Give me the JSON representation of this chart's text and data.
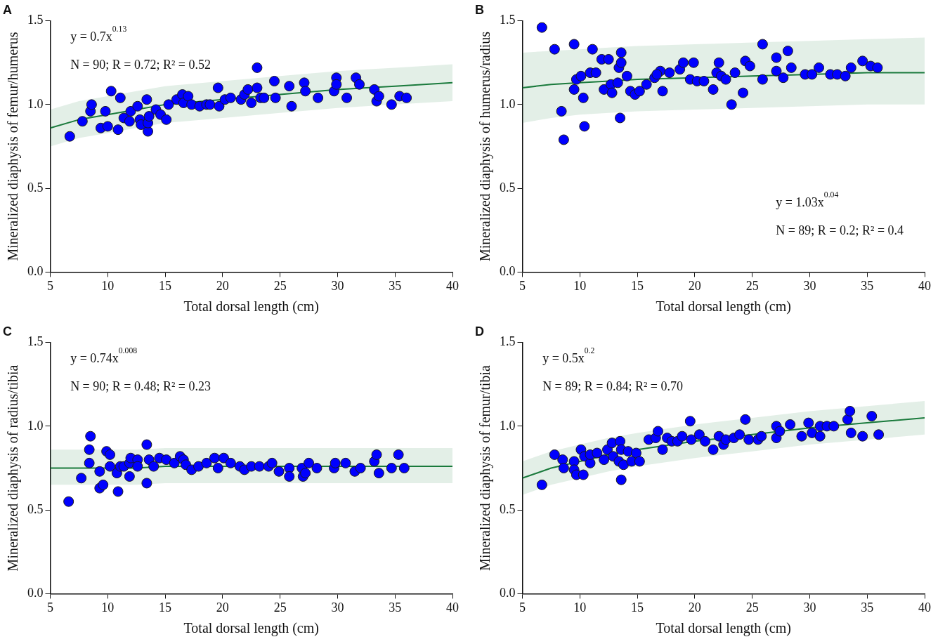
{
  "chart_data": [
    {
      "type": "scatter",
      "title": "A",
      "xlabel": "Total dorsal length (cm)",
      "ylabel": "Mineralized diaphysis of femur/humerus",
      "annotations": [
        "y = 0.7x$^{0.13}$",
        "N = 90; R = 0.72; R² = 0.52"
      ],
      "xlim": [
        5,
        40
      ],
      "ylim": [
        0,
        1.5
      ],
      "xticks": [
        5,
        10,
        15,
        20,
        25,
        30,
        35,
        40
      ],
      "yticks": [
        {
          "value": 0,
          "label": "0.0"
        },
        {
          "value": 0.5,
          "label": "0.5"
        },
        {
          "value": 1,
          "label": "1.0"
        },
        {
          "value": 1.5,
          "label": "1.5"
        }
      ],
      "grid": false,
      "legend": false,
      "marker": "circle",
      "series": [
        {
          "color": "#0000ff",
          "x": [
            6.7,
            7.8,
            8.5,
            8.6,
            9.4,
            10.0,
            9.8,
            10.3,
            11.1,
            10.9,
            11.4,
            11.9,
            12.0,
            12.6,
            12.8,
            12.9,
            13.4,
            13.5,
            13.5,
            13.6,
            14.2,
            14.6,
            15.1,
            15.3,
            16.0,
            16.5,
            16.6,
            17.0,
            17.3,
            18.0,
            18.6,
            18.9,
            19.6,
            19.7,
            20.2,
            20.7,
            21.6,
            21.9,
            22.2,
            22.5,
            23.0,
            23.0,
            23.3,
            23.6,
            24.5,
            24.6,
            25.8,
            26.0,
            27.1,
            27.2,
            28.3,
            29.7,
            29.9,
            29.9,
            30.8,
            31.6,
            31.9,
            33.2,
            33.4,
            33.6,
            34.7,
            35.4,
            36.0
          ],
          "values": [
            0.81,
            0.9,
            0.96,
            1.0,
            0.86,
            0.87,
            0.96,
            1.08,
            1.04,
            0.85,
            0.92,
            0.9,
            0.96,
            0.99,
            0.91,
            0.88,
            1.03,
            0.84,
            0.89,
            0.93,
            0.97,
            0.94,
            0.91,
            1.0,
            1.03,
            1.06,
            1.01,
            1.05,
            1.0,
            0.99,
            1.0,
            1.0,
            1.1,
            0.99,
            1.03,
            1.04,
            1.03,
            1.06,
            1.09,
            1.01,
            1.22,
            1.1,
            1.04,
            1.04,
            1.14,
            1.04,
            1.11,
            0.99,
            1.13,
            1.08,
            1.04,
            1.08,
            1.16,
            1.12,
            1.04,
            1.16,
            1.12,
            1.09,
            1.02,
            1.05,
            1.0,
            1.05,
            1.04
          ]
        },
        {
          "type": "line",
          "color": "#1a7a3c",
          "marker": "none",
          "x": [
            5,
            7.5,
            10,
            12.5,
            15,
            20,
            25,
            30,
            35,
            40
          ],
          "values": [
            0.86,
            0.91,
            0.94,
            0.97,
            1.0,
            1.03,
            1.06,
            1.09,
            1.11,
            1.13
          ],
          "lower": [
            0.75,
            0.8,
            0.83,
            0.86,
            0.89,
            0.92,
            0.95,
            0.98,
            1.0,
            1.02
          ],
          "upper": [
            0.97,
            1.02,
            1.05,
            1.08,
            1.11,
            1.14,
            1.17,
            1.2,
            1.22,
            1.24
          ]
        }
      ]
    },
    {
      "type": "scatter",
      "title": "B",
      "xlabel": "Total dorsal length (cm)",
      "ylabel": "Mineralized diaphysis of humerus/radius",
      "annotations": [
        "y = 1.03x$^{0.04}$",
        "N = 89; R = 0.2; R² = 0.4"
      ],
      "xlim": [
        5,
        40
      ],
      "ylim": [
        0,
        1.5
      ],
      "xticks": [
        5,
        10,
        15,
        20,
        25,
        30,
        35,
        40
      ],
      "yticks": [
        {
          "value": 0,
          "label": "0.0"
        },
        {
          "value": 0.5,
          "label": "0.5"
        },
        {
          "value": 1,
          "label": "1.0"
        },
        {
          "value": 1.5,
          "label": "1.5"
        }
      ],
      "grid": false,
      "legend": false,
      "marker": "circle",
      "series": [
        {
          "color": "#0000ff",
          "x": [
            6.7,
            7.8,
            8.4,
            8.6,
            9.5,
            9.5,
            9.7,
            10.1,
            10.3,
            10.4,
            10.9,
            11.1,
            11.4,
            11.9,
            12.5,
            12.1,
            12.7,
            12.8,
            13.3,
            13.4,
            13.6,
            13.6,
            13.5,
            14.1,
            14.4,
            14.8,
            15.2,
            15.8,
            16.5,
            17.0,
            16.7,
            17.2,
            17.8,
            18.7,
            19.0,
            19.6,
            19.9,
            20.2,
            20.8,
            21.6,
            21.9,
            22.1,
            22.3,
            22.7,
            23.2,
            23.5,
            24.2,
            24.4,
            24.8,
            25.9,
            25.9,
            27.1,
            27.1,
            27.7,
            28.1,
            28.4,
            29.6,
            30.2,
            30.8,
            31.8,
            32.4,
            33.1,
            33.6,
            34.6,
            35.3,
            35.9
          ],
          "values": [
            1.46,
            1.33,
            0.96,
            0.79,
            1.36,
            1.09,
            1.15,
            1.17,
            1.04,
            0.87,
            1.19,
            1.33,
            1.19,
            1.27,
            1.27,
            1.09,
            1.12,
            1.07,
            1.13,
            1.22,
            1.31,
            1.25,
            0.92,
            1.17,
            1.08,
            1.06,
            1.08,
            1.12,
            1.16,
            1.2,
            1.18,
            1.08,
            1.19,
            1.21,
            1.25,
            1.15,
            1.25,
            1.14,
            1.14,
            1.09,
            1.19,
            1.25,
            1.17,
            1.15,
            1.0,
            1.19,
            1.07,
            1.26,
            1.23,
            1.36,
            1.15,
            1.28,
            1.2,
            1.16,
            1.32,
            1.22,
            1.18,
            1.18,
            1.22,
            1.18,
            1.18,
            1.17,
            1.22,
            1.26,
            1.23,
            1.22
          ]
        },
        {
          "type": "line",
          "color": "#1a7a3c",
          "marker": "none",
          "x": [
            5,
            7.5,
            10,
            12.5,
            15,
            20,
            25,
            30,
            35,
            40
          ],
          "values": [
            1.1,
            1.12,
            1.13,
            1.14,
            1.15,
            1.16,
            1.17,
            1.18,
            1.19,
            1.19
          ],
          "lower": [
            0.89,
            0.92,
            0.94,
            0.95,
            0.96,
            0.97,
            0.98,
            0.99,
            1.0,
            1.0
          ],
          "upper": [
            1.31,
            1.32,
            1.33,
            1.34,
            1.35,
            1.36,
            1.37,
            1.38,
            1.39,
            1.4
          ]
        }
      ]
    },
    {
      "type": "scatter",
      "title": "C",
      "xlabel": "Total dorsal length (cm)",
      "ylabel": "Mineralized diaphysis of radius/tibia",
      "annotations": [
        "y = 0.74x$^{0.008}$",
        "N = 90; R = 0.48; R² = 0.23"
      ],
      "xlim": [
        5,
        40
      ],
      "ylim": [
        0,
        1.5
      ],
      "xticks": [
        5,
        10,
        15,
        20,
        25,
        30,
        35,
        40
      ],
      "yticks": [
        {
          "value": 0,
          "label": "0.0"
        },
        {
          "value": 0.5,
          "label": "0.5"
        },
        {
          "value": 1,
          "label": "1.0"
        },
        {
          "value": 1.5,
          "label": "1.5"
        }
      ],
      "grid": false,
      "legend": false,
      "marker": "circle",
      "series": [
        {
          "color": "#0000ff",
          "x": [
            6.6,
            7.7,
            8.4,
            8.4,
            8.5,
            9.3,
            9.3,
            9.6,
            9.9,
            10.2,
            10.2,
            10.8,
            10.9,
            11.1,
            11.4,
            11.9,
            11.9,
            12.0,
            12.6,
            12.6,
            13.4,
            13.4,
            13.6,
            14.0,
            14.5,
            15.1,
            15.8,
            16.3,
            16.6,
            16.8,
            17.3,
            17.9,
            18.6,
            19.3,
            19.6,
            20.1,
            20.7,
            21.5,
            21.9,
            22.5,
            23.2,
            24.0,
            24.3,
            24.9,
            25.8,
            25.8,
            26.9,
            27.0,
            27.2,
            27.5,
            28.2,
            29.7,
            29.8,
            30.7,
            31.5,
            32.0,
            33.2,
            33.4,
            33.6,
            34.7,
            35.3,
            35.8
          ],
          "values": [
            0.55,
            0.69,
            0.78,
            0.86,
            0.94,
            0.73,
            0.63,
            0.65,
            0.85,
            0.83,
            0.76,
            0.72,
            0.61,
            0.76,
            0.76,
            0.7,
            0.78,
            0.81,
            0.8,
            0.76,
            0.66,
            0.89,
            0.8,
            0.76,
            0.81,
            0.8,
            0.78,
            0.82,
            0.8,
            0.77,
            0.74,
            0.76,
            0.78,
            0.81,
            0.75,
            0.81,
            0.78,
            0.76,
            0.74,
            0.76,
            0.76,
            0.76,
            0.78,
            0.73,
            0.75,
            0.7,
            0.75,
            0.7,
            0.72,
            0.78,
            0.75,
            0.75,
            0.78,
            0.78,
            0.73,
            0.75,
            0.79,
            0.83,
            0.72,
            0.75,
            0.83,
            0.75
          ]
        },
        {
          "type": "line",
          "color": "#1a7a3c",
          "marker": "none",
          "x": [
            5,
            7.5,
            10,
            12.5,
            15,
            20,
            25,
            30,
            35,
            40
          ],
          "values": [
            0.75,
            0.75,
            0.75,
            0.75,
            0.76,
            0.76,
            0.76,
            0.76,
            0.76,
            0.76
          ],
          "lower": [
            0.65,
            0.65,
            0.65,
            0.65,
            0.66,
            0.66,
            0.66,
            0.66,
            0.66,
            0.66
          ],
          "upper": [
            0.86,
            0.86,
            0.86,
            0.86,
            0.87,
            0.87,
            0.87,
            0.87,
            0.87,
            0.87
          ]
        }
      ]
    },
    {
      "type": "scatter",
      "title": "D",
      "xlabel": "Total dorsal length (cm)",
      "ylabel": "Mineralized diaphysis of femur/tibia",
      "annotations": [
        "y = 0.5x$^{0.2}$",
        "N = 89; R = 0.84; R² = 0.70"
      ],
      "xlim": [
        5,
        40
      ],
      "ylim": [
        0,
        1.5
      ],
      "xticks": [
        5,
        10,
        15,
        20,
        25,
        30,
        35,
        40
      ],
      "yticks": [
        {
          "value": 0,
          "label": "0.0"
        },
        {
          "value": 0.5,
          "label": "0.5"
        },
        {
          "value": 1,
          "label": "1.0"
        },
        {
          "value": 1.5,
          "label": "1.5"
        }
      ],
      "grid": false,
      "legend": false,
      "marker": "circle",
      "series": [
        {
          "color": "#0000ff",
          "x": [
            6.7,
            7.8,
            8.5,
            8.6,
            9.5,
            9.5,
            9.7,
            10.3,
            10.1,
            10.4,
            10.9,
            10.9,
            11.5,
            12.1,
            12.4,
            12.8,
            12.9,
            13.4,
            13.5,
            13.6,
            13.6,
            13.8,
            14.2,
            14.5,
            14.9,
            15.2,
            16.0,
            16.6,
            16.8,
            17.2,
            17.6,
            18.0,
            18.5,
            18.9,
            19.6,
            19.7,
            20.4,
            20.9,
            21.6,
            22.1,
            22.5,
            22.7,
            23.4,
            23.9,
            24.4,
            24.7,
            25.5,
            25.8,
            27.1,
            27.1,
            27.4,
            28.3,
            29.3,
            29.9,
            30.2,
            30.9,
            30.9,
            31.5,
            32.1,
            33.3,
            33.5,
            33.6,
            34.6,
            35.4,
            36.0
          ],
          "values": [
            0.65,
            0.83,
            0.8,
            0.75,
            0.79,
            0.74,
            0.71,
            0.71,
            0.86,
            0.82,
            0.78,
            0.83,
            0.84,
            0.8,
            0.86,
            0.9,
            0.82,
            0.79,
            0.91,
            0.68,
            0.86,
            0.77,
            0.85,
            0.79,
            0.84,
            0.79,
            0.92,
            0.93,
            0.97,
            0.86,
            0.93,
            0.91,
            0.91,
            0.94,
            1.03,
            0.92,
            0.95,
            0.91,
            0.86,
            0.94,
            0.89,
            0.92,
            0.93,
            0.95,
            1.04,
            0.92,
            0.92,
            0.94,
            1.0,
            0.93,
            0.97,
            1.01,
            0.94,
            1.02,
            0.96,
            1.0,
            0.94,
            1.0,
            1.0,
            1.04,
            1.09,
            0.96,
            0.94,
            1.06,
            0.95
          ]
        },
        {
          "type": "line",
          "color": "#1a7a3c",
          "marker": "none",
          "x": [
            5,
            7.5,
            10,
            12.5,
            15,
            20,
            25,
            30,
            35,
            40
          ],
          "values": [
            0.69,
            0.75,
            0.79,
            0.83,
            0.86,
            0.91,
            0.95,
            0.99,
            1.02,
            1.05
          ],
          "lower": [
            0.59,
            0.65,
            0.69,
            0.73,
            0.76,
            0.81,
            0.85,
            0.89,
            0.92,
            0.95
          ],
          "upper": [
            0.79,
            0.85,
            0.89,
            0.93,
            0.96,
            1.01,
            1.05,
            1.09,
            1.12,
            1.15
          ]
        }
      ]
    }
  ]
}
